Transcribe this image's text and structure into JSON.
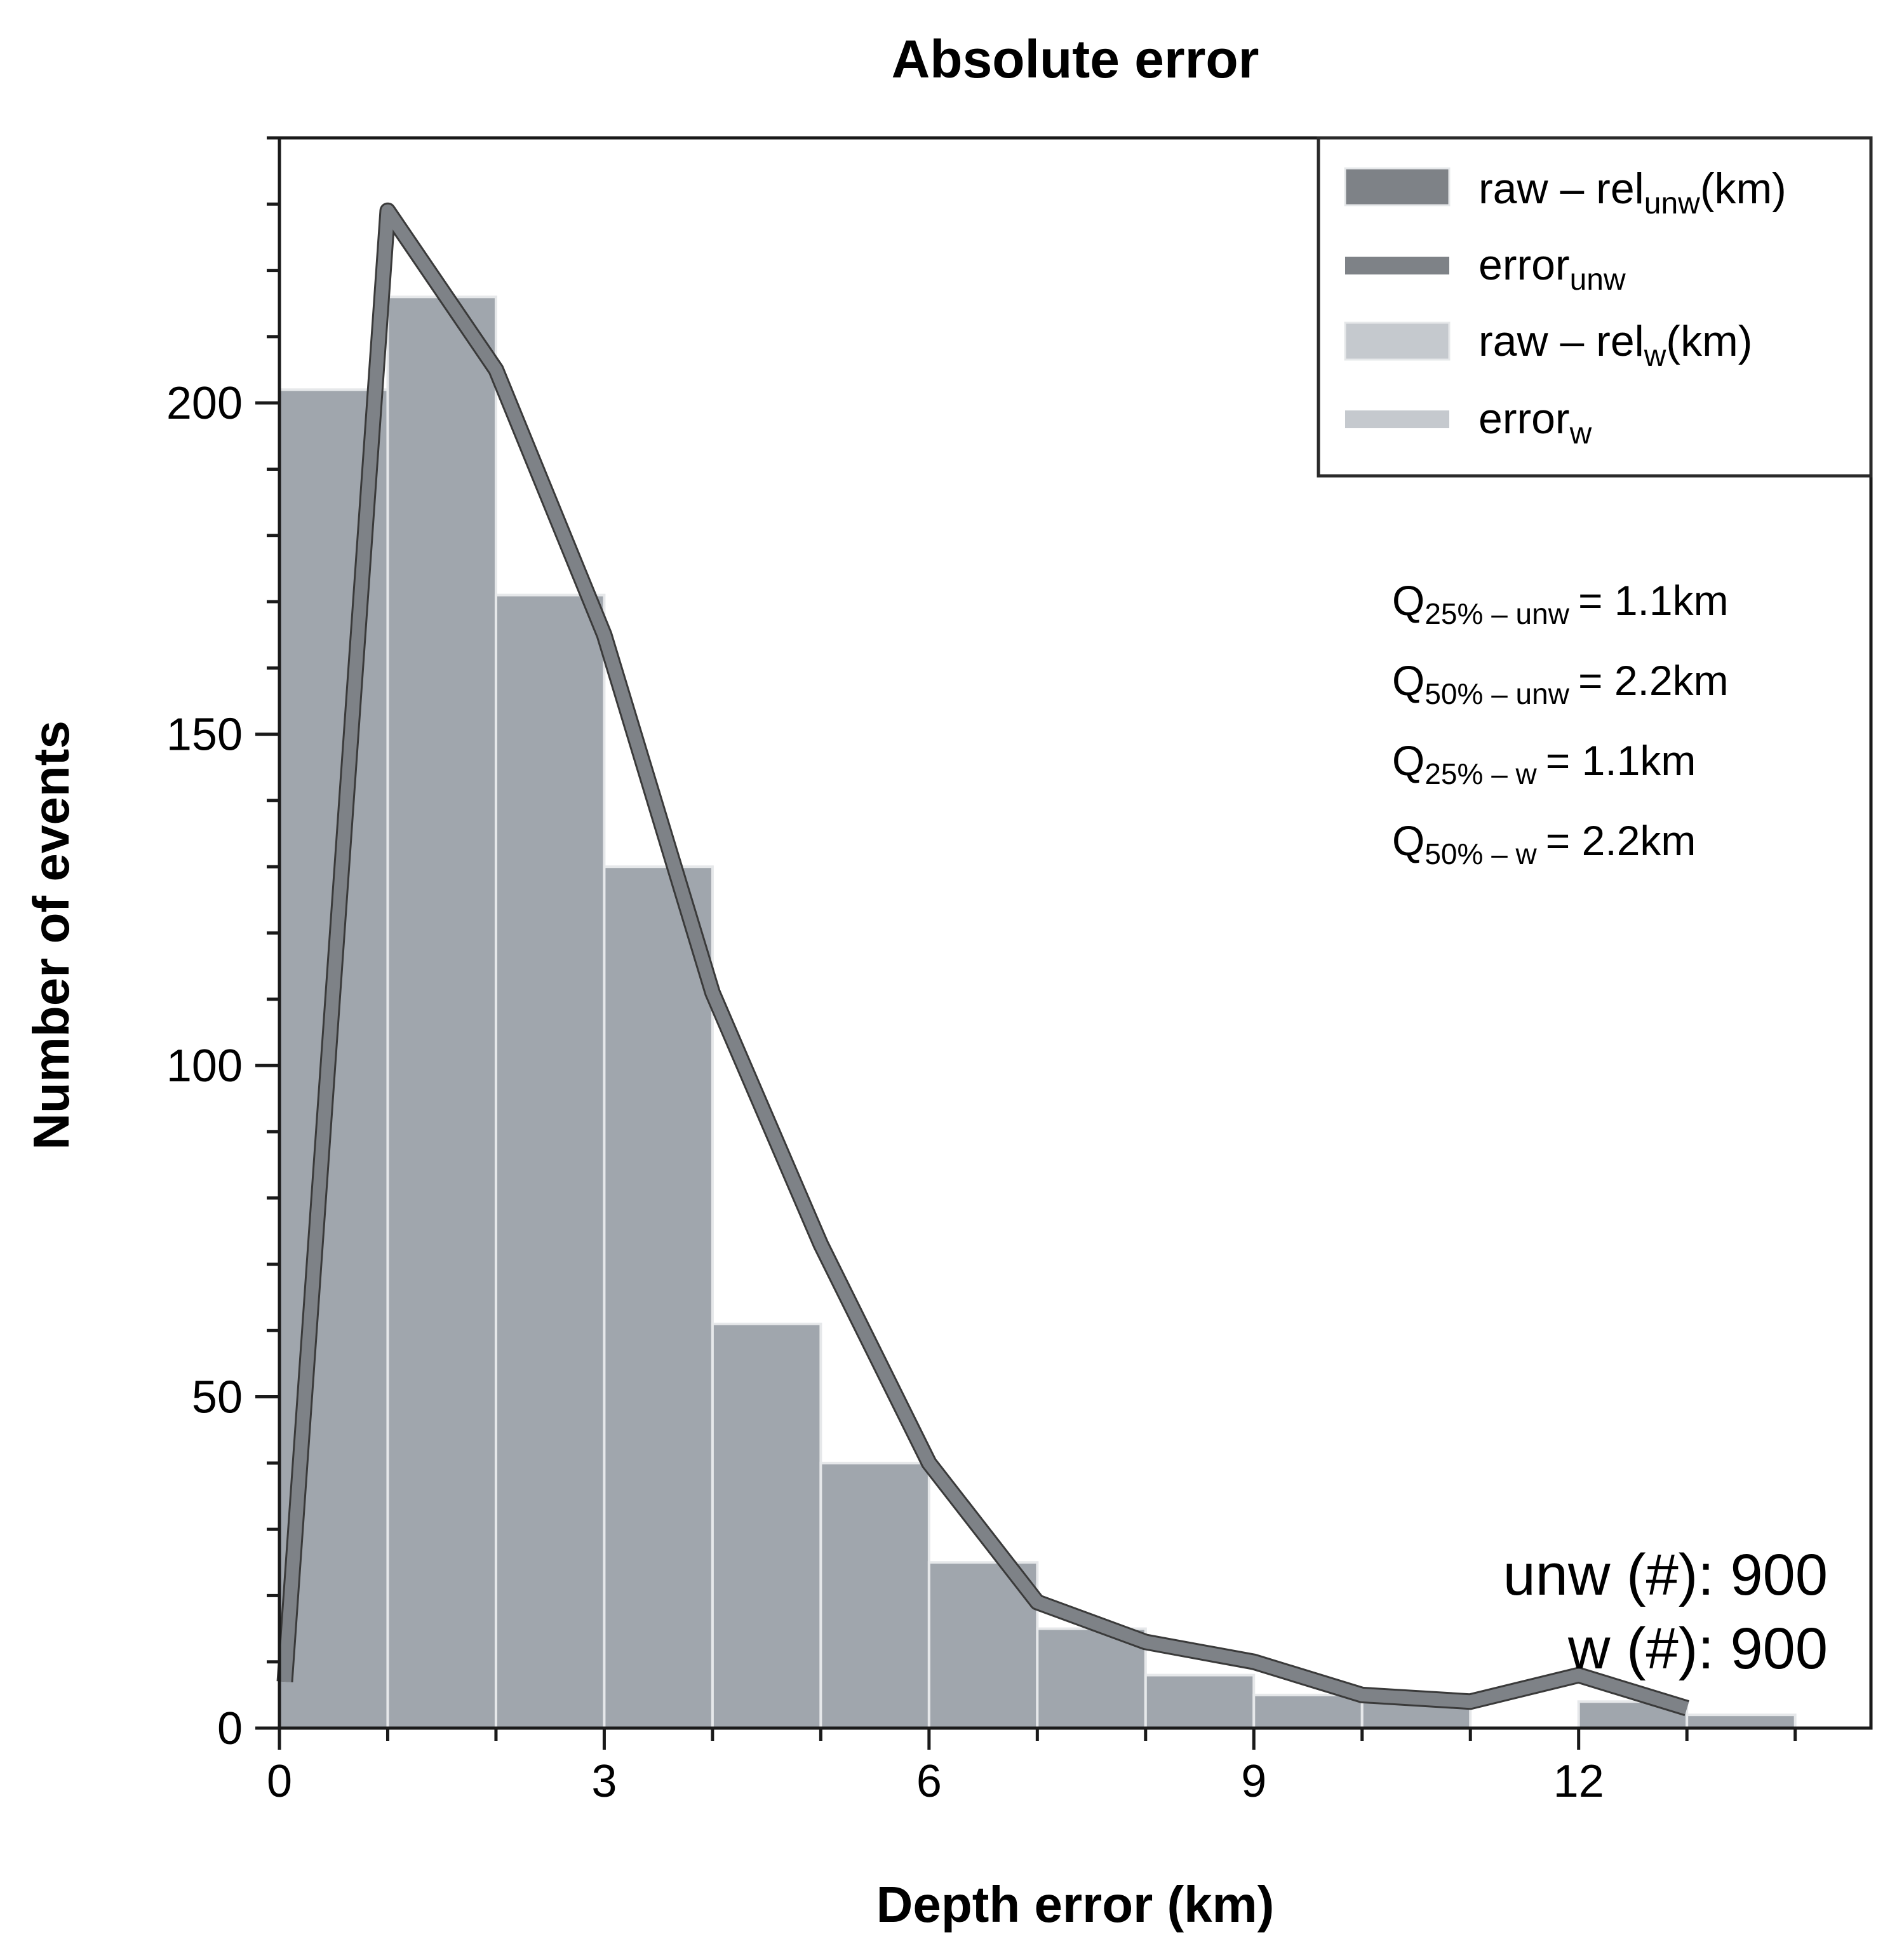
{
  "chart_data": {
    "type": "bar",
    "title": "Absolute error",
    "xlabel": "Depth error (km)",
    "ylabel": "Number of events",
    "xlim": [
      0,
      14.7
    ],
    "ylim": [
      0,
      240
    ],
    "x_ticks": [
      0,
      3,
      6,
      9,
      12
    ],
    "y_ticks": [
      0,
      50,
      100,
      150,
      200
    ],
    "grid": false,
    "legend_position": "top-right",
    "bin_width": 1,
    "colors": {
      "unw_fill": "#7e8287",
      "unw_line": "#7e8287",
      "w_fill": "#c5c9ce",
      "w_line": "#c5c9ce",
      "overlap_fill": "#a0a6ad",
      "bar_edge": "#e6e8ea",
      "line_edge": "#3a3a3a"
    },
    "histograms": [
      {
        "name_base": "raw – rel",
        "name_sub": "unw",
        "name_suffix": "(km)",
        "bin_starts": [
          0,
          1,
          2,
          3,
          4,
          5,
          6,
          7,
          8,
          9,
          10,
          11,
          12,
          13
        ],
        "values": [
          202,
          216,
          171,
          130,
          61,
          40,
          25,
          15,
          8,
          5,
          5,
          0,
          4,
          2
        ]
      },
      {
        "name_base": "raw – rel",
        "name_sub": "w",
        "name_suffix": "(km)",
        "bin_starts": [
          0,
          1,
          2,
          3,
          4,
          5,
          6,
          7,
          8,
          9,
          10,
          11,
          12,
          13
        ],
        "values": [
          202,
          216,
          171,
          130,
          61,
          40,
          25,
          15,
          8,
          5,
          5,
          0,
          4,
          2
        ]
      }
    ],
    "curves": [
      {
        "name_base": "error",
        "name_sub": "unw",
        "x": [
          0.05,
          1.0,
          2.0,
          3.0,
          4.0,
          5.0,
          6.0,
          7.0,
          8.0,
          9.0,
          10.0,
          11.0,
          12.0,
          13.0
        ],
        "y": [
          7,
          229,
          205,
          165,
          111,
          73,
          40,
          19,
          13,
          10,
          5,
          4,
          8,
          3
        ]
      },
      {
        "name_base": "error",
        "name_sub": "w",
        "x": [
          0.05,
          1.0,
          2.0,
          3.0,
          4.0,
          5.0,
          6.0,
          7.0,
          8.0,
          9.0,
          10.0,
          11.0,
          12.0,
          13.0
        ],
        "y": [
          7,
          229,
          205,
          165,
          111,
          73,
          40,
          19,
          13,
          10,
          5,
          4,
          8,
          3
        ]
      }
    ],
    "quantiles": [
      {
        "q": "Q",
        "sub": "25% – unw",
        "value": "= 1.1km"
      },
      {
        "q": "Q",
        "sub": "50% – unw",
        "value": "= 2.2km"
      },
      {
        "q": "Q",
        "sub": "25% – w",
        "value": "= 1.1km"
      },
      {
        "q": "Q",
        "sub": "50% – w",
        "value": "= 2.2km"
      }
    ],
    "counts": {
      "unw": "unw (#): 900",
      "w": "w (#): 900"
    }
  }
}
